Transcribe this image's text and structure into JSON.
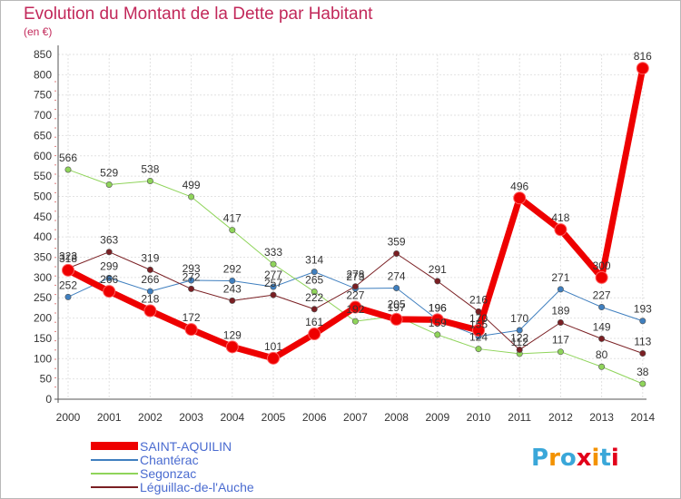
{
  "title": "Evolution du Montant de la Dette par Habitant",
  "subtitle": "(en €)",
  "logo": {
    "text": "Proxiti",
    "letters": [
      "P",
      "r",
      "o",
      "x",
      "i",
      "t",
      "i"
    ],
    "colors": [
      "#3aa7d9",
      "#f39200",
      "#3aa7d9",
      "#e2001a",
      "#f39200",
      "#3aa7d9",
      "#e2001a"
    ]
  },
  "chart_data": {
    "type": "line",
    "x": [
      "2000",
      "2001",
      "2002",
      "2003",
      "2004",
      "2005",
      "2006",
      "2007",
      "2008",
      "2009",
      "2010",
      "2011",
      "2012",
      "2013",
      "2014"
    ],
    "ylim": [
      0,
      850
    ],
    "yticks": [
      "0",
      "50",
      "100",
      "150",
      "200",
      "250",
      "300",
      "350",
      "400",
      "450",
      "500",
      "550",
      "600",
      "650",
      "700",
      "750",
      "800",
      "850"
    ],
    "grid": true,
    "legend_position": "bottom-left",
    "series": [
      {
        "name": "Chantérac",
        "color": "#3f7fbf",
        "width": 1,
        "values": [
          252,
          299,
          266,
          293,
          292,
          277,
          314,
          273,
          274,
          196,
          155,
          170,
          271,
          227,
          193
        ]
      },
      {
        "name": "Segonzac",
        "color": "#8fd45a",
        "width": 1,
        "values": [
          566,
          529,
          538,
          499,
          417,
          333,
          265,
          192,
          205,
          159,
          124,
          112,
          117,
          80,
          38
        ]
      },
      {
        "name": "Léguillac-de-l'Auche",
        "color": "#7a1f23",
        "width": 1,
        "values": [
          323,
          363,
          319,
          272,
          243,
          257,
          222,
          278,
          359,
          291,
          216,
          122,
          189,
          149,
          113
        ]
      },
      {
        "name": "SAINT-AQUILIN",
        "color": "#ee0000",
        "width": 7,
        "values": [
          318,
          266,
          218,
          172,
          129,
          101,
          161,
          227,
          197,
          196,
          170,
          496,
          418,
          300,
          816
        ]
      }
    ],
    "legend_order": [
      "SAINT-AQUILIN",
      "Chantérac",
      "Segonzac",
      "Léguillac-de-l'Auche"
    ]
  }
}
